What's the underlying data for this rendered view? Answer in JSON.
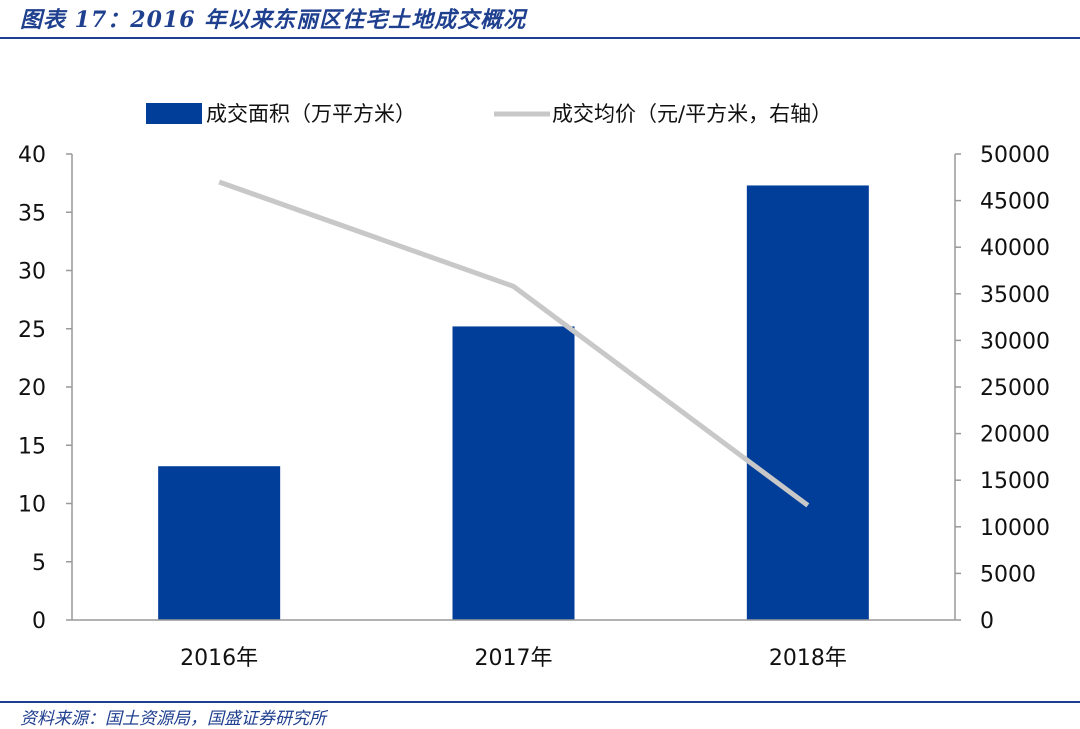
{
  "title": "图表 17：2016 年以来东丽区住宅土地成交概况",
  "source": "资料来源：国土资源局，国盛证券研究所",
  "colors": {
    "bar": "#013e99",
    "line": "#c8c8c8",
    "accent": "#1f3f8f"
  },
  "chart_data": {
    "type": "bar",
    "categories": [
      "2016年",
      "2017年",
      "2018年"
    ],
    "series": [
      {
        "name": "成交面积（万平方米）",
        "type": "bar",
        "axis": "left",
        "values": [
          13.2,
          25.2,
          37.3
        ]
      },
      {
        "name": "成交均价（元/平方米，右轴）",
        "type": "line",
        "axis": "right",
        "values": [
          47000,
          35800,
          12300
        ]
      }
    ],
    "y_left": {
      "min": 0,
      "max": 40,
      "ticks": [
        "0",
        "5",
        "10",
        "15",
        "20",
        "25",
        "30",
        "35",
        "40"
      ]
    },
    "y_right": {
      "min": 0,
      "max": 50000,
      "ticks": [
        "0",
        "5000",
        "10000",
        "15000",
        "20000",
        "25000",
        "30000",
        "35000",
        "40000",
        "45000",
        "50000"
      ]
    },
    "grid": false,
    "legend": "top"
  }
}
